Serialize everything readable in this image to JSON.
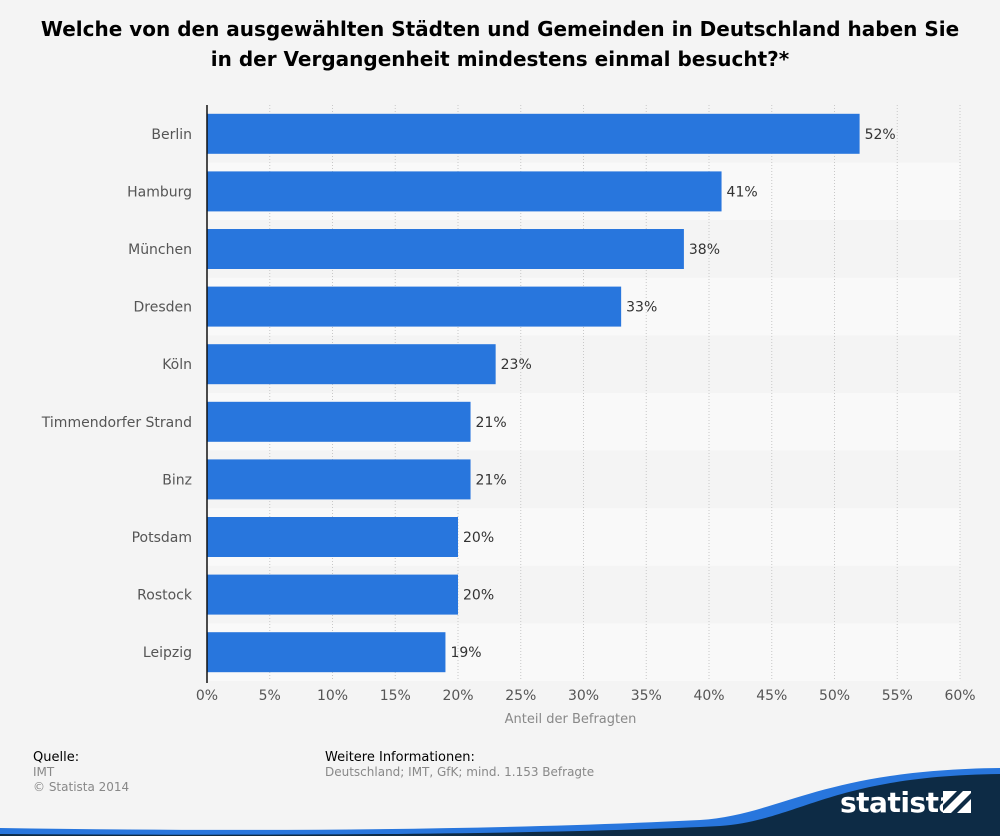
{
  "title_line1": "Welche von den ausgewählten Städten und Gemeinden in Deutschland haben Sie",
  "title_line2": "in der Vergangenheit mindestens einmal besucht?*",
  "chart_data": {
    "type": "bar",
    "orientation": "horizontal",
    "categories": [
      "Berlin",
      "Hamburg",
      "München",
      "Dresden",
      "Köln",
      "Timmendorfer Strand",
      "Binz",
      "Potsdam",
      "Rostock",
      "Leipzig"
    ],
    "values": [
      52,
      41,
      38,
      33,
      23,
      21,
      21,
      20,
      20,
      19
    ],
    "data_labels": [
      "52%",
      "41%",
      "38%",
      "33%",
      "23%",
      "21%",
      "21%",
      "20%",
      "20%",
      "19%"
    ],
    "xlabel": "Anteil der Befragten",
    "ylabel": "",
    "xlim": [
      0,
      60
    ],
    "ticks": [
      0,
      5,
      10,
      15,
      20,
      25,
      30,
      35,
      40,
      45,
      50,
      55,
      60
    ],
    "tick_labels": [
      "0%",
      "5%",
      "10%",
      "15%",
      "20%",
      "25%",
      "30%",
      "35%",
      "40%",
      "45%",
      "50%",
      "55%",
      "60%"
    ],
    "bar_color": "#2876dd",
    "grid": true
  },
  "footer": {
    "source_heading": "Quelle:",
    "source_line1": "IMT",
    "source_line2": "© Statista 2014",
    "info_heading": "Weitere Informationen:",
    "info_text": "Deutschland; IMT, GfK; mind. 1.153 Befragte"
  },
  "brand": {
    "name": "statista",
    "dark_color": "#0d2b45",
    "accent_color": "#2876dd"
  }
}
